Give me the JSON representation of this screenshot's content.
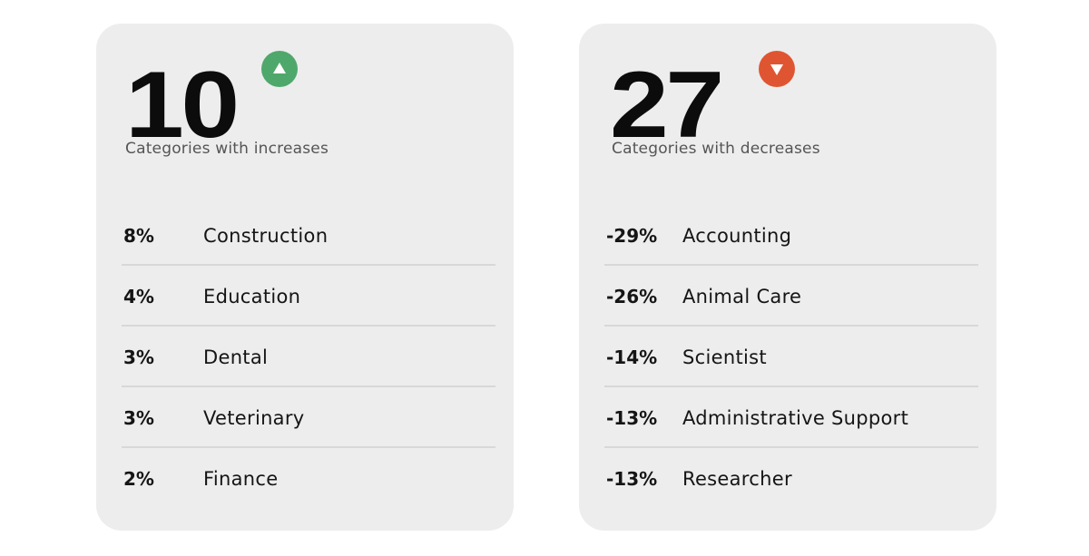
{
  "cards": [
    {
      "big_number": "10",
      "direction": "up",
      "indicator_color": "#4fa86b",
      "icon": "triangle-up-icon",
      "caption": "Categories with increases",
      "items": [
        {
          "pct": "8%",
          "label": "Construction"
        },
        {
          "pct": "4%",
          "label": "Education"
        },
        {
          "pct": "3%",
          "label": "Dental"
        },
        {
          "pct": "3%",
          "label": "Veterinary"
        },
        {
          "pct": "2%",
          "label": "Finance"
        }
      ]
    },
    {
      "big_number": "27",
      "direction": "down",
      "indicator_color": "#e05531",
      "icon": "triangle-down-icon",
      "caption": "Categories with decreases",
      "items": [
        {
          "pct": "-29%",
          "label": "Accounting"
        },
        {
          "pct": "-26%",
          "label": "Animal Care"
        },
        {
          "pct": "-14%",
          "label": "Scientist"
        },
        {
          "pct": "-13%",
          "label": "Administrative Support"
        },
        {
          "pct": "-13%",
          "label": "Researcher"
        }
      ]
    }
  ]
}
